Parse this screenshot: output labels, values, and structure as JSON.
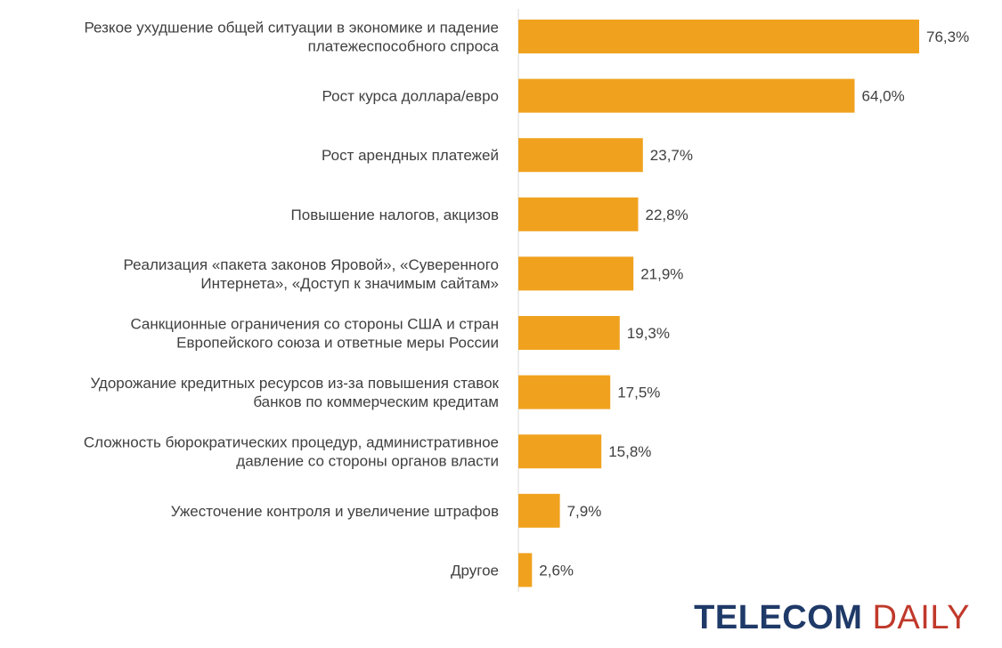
{
  "colors": {
    "bar": "#f0a21e",
    "text": "#404040",
    "axis": "#d9d9d9",
    "logo_primary": "#1f3a68",
    "logo_accent": "#c0392b"
  },
  "chart_data": {
    "type": "bar",
    "orientation": "horizontal",
    "categories": [
      [
        "Резкое ухудшение общей ситуации в экономике и падение",
        "платежеспособного спроса"
      ],
      [
        "Рост курса доллара/евро"
      ],
      [
        "Рост арендных платежей"
      ],
      [
        "Повышение налогов, акцизов"
      ],
      [
        "Реализация «пакета законов Яровой», «Суверенного",
        "Интернета», «Доступ к значимым сайтам»"
      ],
      [
        "Санкционные ограничения со стороны США и стран",
        "Европейского союза и ответные меры России"
      ],
      [
        "Удорожание кредитных ресурсов из-за повышения ставок",
        "банков по коммерческим кредитам"
      ],
      [
        "Сложность бюрократических процедур, административное",
        "давление со стороны органов власти"
      ],
      [
        "Ужесточение контроля и увеличение штрафов"
      ],
      [
        "Другое"
      ]
    ],
    "values": [
      76.3,
      64.0,
      23.7,
      22.8,
      21.9,
      19.3,
      17.5,
      15.8,
      7.9,
      2.6
    ],
    "value_labels": [
      "76,3%",
      "64,0%",
      "23,7%",
      "22,8%",
      "21,9%",
      "19,3%",
      "17,5%",
      "15,8%",
      "7,9%",
      "2,6%"
    ],
    "xlim": [
      0,
      76.3
    ],
    "grid": false,
    "legend": "none"
  },
  "logo": {
    "part1": "TELECOM",
    "part2": "DAILY"
  }
}
